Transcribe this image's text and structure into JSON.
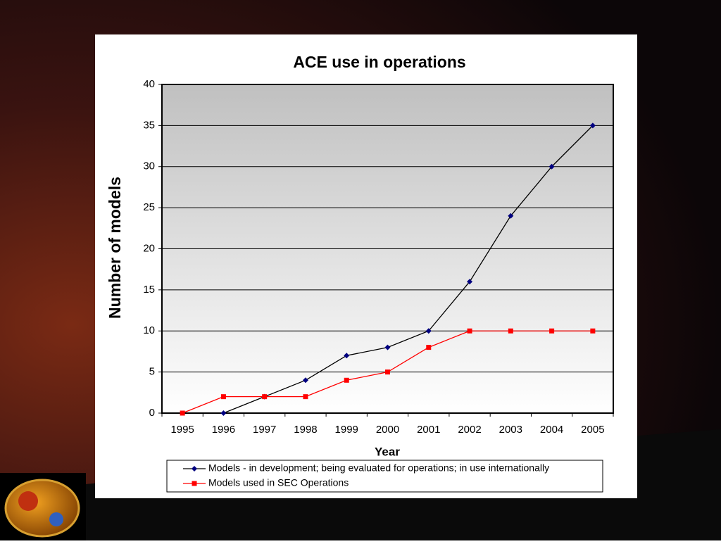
{
  "chart_data": {
    "type": "line",
    "title": "ACE use in operations",
    "x_label": "Year",
    "y_label": "Number of models",
    "categories": [
      "1995",
      "1996",
      "1997",
      "1998",
      "1999",
      "2000",
      "2001",
      "2002",
      "2003",
      "2004",
      "2005"
    ],
    "series": [
      {
        "name": "Models - in development; being evaluated for operations; in use internationally",
        "color": "#000080",
        "marker": "diamond",
        "values": [
          null,
          0,
          2,
          4,
          7,
          8,
          10,
          16,
          24,
          30,
          35
        ]
      },
      {
        "name": "Models used in SEC Operations",
        "color": "#ff0000",
        "marker": "square",
        "values": [
          0,
          2,
          2,
          2,
          4,
          5,
          8,
          10,
          10,
          10,
          10
        ]
      }
    ],
    "ylim": [
      0,
      40
    ],
    "yticks": [
      0,
      5,
      10,
      15,
      20,
      25,
      30,
      35,
      40
    ],
    "grid": true,
    "legend": "bottom"
  }
}
